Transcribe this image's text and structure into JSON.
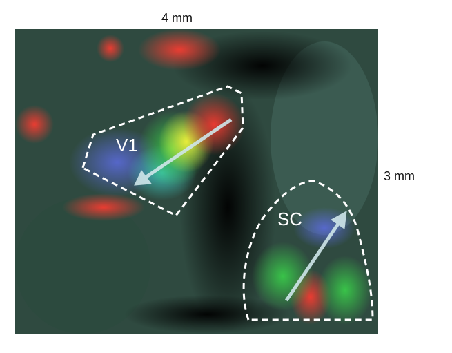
{
  "scale_labels": {
    "horizontal": "4 mm",
    "vertical": "3 mm"
  },
  "regions": {
    "v1": "V1",
    "sc": "SC"
  },
  "colors": {
    "outline": "#ffffff",
    "arrow": "#cfe6ea",
    "background": "#2f4a40"
  }
}
